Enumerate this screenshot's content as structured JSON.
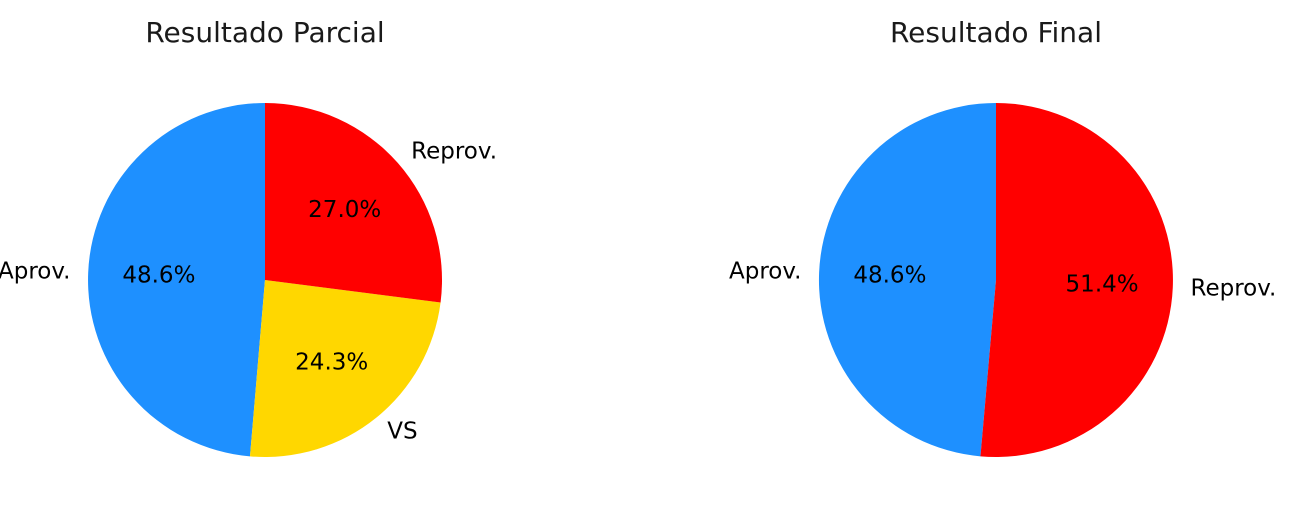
{
  "chart_data": [
    {
      "type": "pie",
      "title": "Resultado Parcial",
      "start_angle_deg": 90,
      "direction": "counterclockwise",
      "slices": [
        {
          "label": "Aprov.",
          "value": 48.6,
          "pct_label": "48.6%",
          "color": "#1e90ff"
        },
        {
          "label": "VS",
          "value": 24.3,
          "pct_label": "24.3%",
          "color": "#ffd700"
        },
        {
          "label": "Reprov.",
          "value": 27.0,
          "pct_label": "27.0%",
          "color": "#ff0000"
        }
      ]
    },
    {
      "type": "pie",
      "title": "Resultado Final",
      "start_angle_deg": 90,
      "direction": "counterclockwise",
      "slices": [
        {
          "label": "Aprov.",
          "value": 48.6,
          "pct_label": "48.6%",
          "color": "#1e90ff"
        },
        {
          "label": "Reprov.",
          "value": 51.4,
          "pct_label": "51.4%",
          "color": "#ff0000"
        }
      ]
    }
  ]
}
